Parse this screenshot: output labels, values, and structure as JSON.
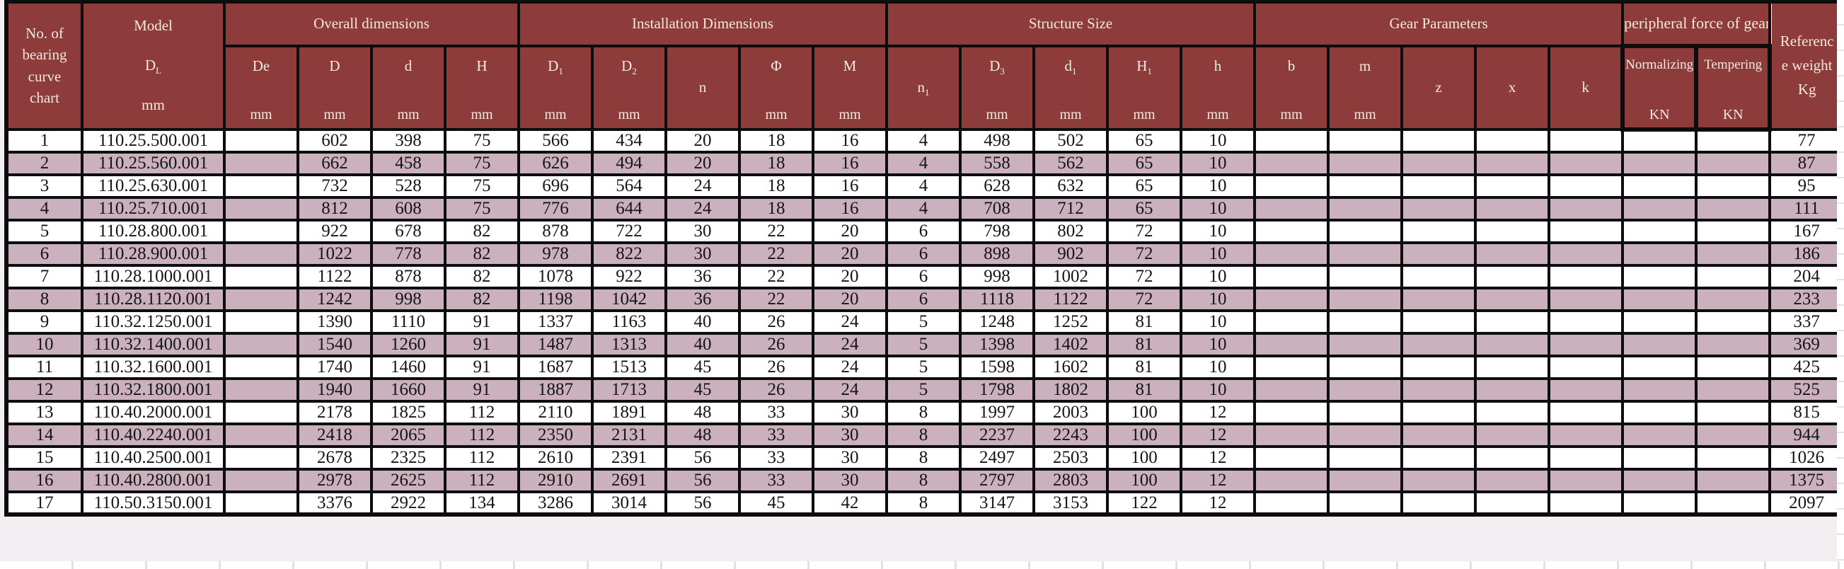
{
  "colors": {
    "header_bg": "#8e3b3b",
    "header_text": "#f2e9df",
    "row_stripe": "#cbb0bd",
    "row_plain": "#ffffff",
    "grid_border": "#0d0d0d",
    "background_gridline": "#e6dfe4"
  },
  "table": {
    "header": {
      "col_no": {
        "lines": [
          "No. of",
          "bearing",
          "curve",
          "chart"
        ]
      },
      "col_model": {
        "title": "Model",
        "symbol_base": "D",
        "symbol_sub": "L",
        "unit": "mm"
      },
      "groups": [
        {
          "label": "Overall dimensions",
          "span": 4,
          "clipped": false
        },
        {
          "label": "Installation Dimensions",
          "span": 5,
          "clipped": false
        },
        {
          "label": "Structure Size",
          "span": 5,
          "clipped": false
        },
        {
          "label": "Gear Parameters",
          "span": 5,
          "clipped": false
        },
        {
          "label": "peripheral force of gear",
          "span": 2,
          "clipped": true
        }
      ],
      "subcols": [
        {
          "key": "De",
          "base": "De",
          "sub": "",
          "unit": "mm"
        },
        {
          "key": "D",
          "base": "D",
          "sub": "",
          "unit": "mm"
        },
        {
          "key": "d",
          "base": "d",
          "sub": "",
          "unit": "mm"
        },
        {
          "key": "H",
          "base": "H",
          "sub": "",
          "unit": "mm"
        },
        {
          "key": "D1",
          "base": "D",
          "sub": "1",
          "unit": "mm"
        },
        {
          "key": "D2",
          "base": "D",
          "sub": "2",
          "unit": "mm"
        },
        {
          "key": "n",
          "base": "n",
          "sub": "",
          "unit": ""
        },
        {
          "key": "Phi",
          "base": "Φ",
          "sub": "",
          "unit": "mm"
        },
        {
          "key": "M",
          "base": "M",
          "sub": "",
          "unit": "mm"
        },
        {
          "key": "n1",
          "base": "n",
          "sub": "1",
          "unit": ""
        },
        {
          "key": "D3",
          "base": "D",
          "sub": "3",
          "unit": "mm"
        },
        {
          "key": "d1",
          "base": "d",
          "sub": "1",
          "unit": "mm"
        },
        {
          "key": "H1",
          "base": "H",
          "sub": "1",
          "unit": "mm"
        },
        {
          "key": "h",
          "base": "h",
          "sub": "",
          "unit": "mm"
        },
        {
          "key": "b",
          "base": "b",
          "sub": "",
          "unit": "mm"
        },
        {
          "key": "m",
          "base": "m",
          "sub": "",
          "unit": "mm"
        },
        {
          "key": "z",
          "base": "z",
          "sub": "",
          "unit": ""
        },
        {
          "key": "x",
          "base": "x",
          "sub": "",
          "unit": ""
        },
        {
          "key": "k",
          "base": "k",
          "sub": "",
          "unit": ""
        },
        {
          "key": "Normalizing",
          "base": "Normalizing",
          "sub": "",
          "unit": "KN"
        },
        {
          "key": "Tempering",
          "base": "Tempering",
          "sub": "",
          "unit": "KN"
        }
      ],
      "col_weight": {
        "lines": [
          "Referenc",
          "e weight",
          "Kg"
        ]
      }
    },
    "rows": [
      {
        "no": "1",
        "model": "110.25.500.001",
        "values": [
          "",
          "602",
          "398",
          "75",
          "566",
          "434",
          "20",
          "18",
          "16",
          "4",
          "498",
          "502",
          "65",
          "10",
          "",
          "",
          "",
          "",
          "",
          "",
          ""
        ],
        "weight": "77"
      },
      {
        "no": "2",
        "model": "110.25.560.001",
        "values": [
          "",
          "662",
          "458",
          "75",
          "626",
          "494",
          "20",
          "18",
          "16",
          "4",
          "558",
          "562",
          "65",
          "10",
          "",
          "",
          "",
          "",
          "",
          "",
          ""
        ],
        "weight": "87"
      },
      {
        "no": "3",
        "model": "110.25.630.001",
        "values": [
          "",
          "732",
          "528",
          "75",
          "696",
          "564",
          "24",
          "18",
          "16",
          "4",
          "628",
          "632",
          "65",
          "10",
          "",
          "",
          "",
          "",
          "",
          "",
          ""
        ],
        "weight": "95"
      },
      {
        "no": "4",
        "model": "110.25.710.001",
        "values": [
          "",
          "812",
          "608",
          "75",
          "776",
          "644",
          "24",
          "18",
          "16",
          "4",
          "708",
          "712",
          "65",
          "10",
          "",
          "",
          "",
          "",
          "",
          "",
          ""
        ],
        "weight": "111"
      },
      {
        "no": "5",
        "model": "110.28.800.001",
        "values": [
          "",
          "922",
          "678",
          "82",
          "878",
          "722",
          "30",
          "22",
          "20",
          "6",
          "798",
          "802",
          "72",
          "10",
          "",
          "",
          "",
          "",
          "",
          "",
          ""
        ],
        "weight": "167"
      },
      {
        "no": "6",
        "model": "110.28.900.001",
        "values": [
          "",
          "1022",
          "778",
          "82",
          "978",
          "822",
          "30",
          "22",
          "20",
          "6",
          "898",
          "902",
          "72",
          "10",
          "",
          "",
          "",
          "",
          "",
          "",
          ""
        ],
        "weight": "186"
      },
      {
        "no": "7",
        "model": "110.28.1000.001",
        "values": [
          "",
          "1122",
          "878",
          "82",
          "1078",
          "922",
          "36",
          "22",
          "20",
          "6",
          "998",
          "1002",
          "72",
          "10",
          "",
          "",
          "",
          "",
          "",
          "",
          ""
        ],
        "weight": "204"
      },
      {
        "no": "8",
        "model": "110.28.1120.001",
        "values": [
          "",
          "1242",
          "998",
          "82",
          "1198",
          "1042",
          "36",
          "22",
          "20",
          "6",
          "1118",
          "1122",
          "72",
          "10",
          "",
          "",
          "",
          "",
          "",
          "",
          ""
        ],
        "weight": "233"
      },
      {
        "no": "9",
        "model": "110.32.1250.001",
        "values": [
          "",
          "1390",
          "1110",
          "91",
          "1337",
          "1163",
          "40",
          "26",
          "24",
          "5",
          "1248",
          "1252",
          "81",
          "10",
          "",
          "",
          "",
          "",
          "",
          "",
          ""
        ],
        "weight": "337"
      },
      {
        "no": "10",
        "model": "110.32.1400.001",
        "values": [
          "",
          "1540",
          "1260",
          "91",
          "1487",
          "1313",
          "40",
          "26",
          "24",
          "5",
          "1398",
          "1402",
          "81",
          "10",
          "",
          "",
          "",
          "",
          "",
          "",
          ""
        ],
        "weight": "369"
      },
      {
        "no": "11",
        "model": "110.32.1600.001",
        "values": [
          "",
          "1740",
          "1460",
          "91",
          "1687",
          "1513",
          "45",
          "26",
          "24",
          "5",
          "1598",
          "1602",
          "81",
          "10",
          "",
          "",
          "",
          "",
          "",
          "",
          ""
        ],
        "weight": "425"
      },
      {
        "no": "12",
        "model": "110.32.1800.001",
        "values": [
          "",
          "1940",
          "1660",
          "91",
          "1887",
          "1713",
          "45",
          "26",
          "24",
          "5",
          "1798",
          "1802",
          "81",
          "10",
          "",
          "",
          "",
          "",
          "",
          "",
          ""
        ],
        "weight": "525"
      },
      {
        "no": "13",
        "model": "110.40.2000.001",
        "values": [
          "",
          "2178",
          "1825",
          "112",
          "2110",
          "1891",
          "48",
          "33",
          "30",
          "8",
          "1997",
          "2003",
          "100",
          "12",
          "",
          "",
          "",
          "",
          "",
          "",
          ""
        ],
        "weight": "815"
      },
      {
        "no": "14",
        "model": "110.40.2240.001",
        "values": [
          "",
          "2418",
          "2065",
          "112",
          "2350",
          "2131",
          "48",
          "33",
          "30",
          "8",
          "2237",
          "2243",
          "100",
          "12",
          "",
          "",
          "",
          "",
          "",
          "",
          ""
        ],
        "weight": "944"
      },
      {
        "no": "15",
        "model": "110.40.2500.001",
        "values": [
          "",
          "2678",
          "2325",
          "112",
          "2610",
          "2391",
          "56",
          "33",
          "30",
          "8",
          "2497",
          "2503",
          "100",
          "12",
          "",
          "",
          "",
          "",
          "",
          "",
          ""
        ],
        "weight": "1026"
      },
      {
        "no": "16",
        "model": "110.40.2800.001",
        "values": [
          "",
          "2978",
          "2625",
          "112",
          "2910",
          "2691",
          "56",
          "33",
          "30",
          "8",
          "2797",
          "2803",
          "100",
          "12",
          "",
          "",
          "",
          "",
          "",
          "",
          ""
        ],
        "weight": "1375"
      },
      {
        "no": "17",
        "model": "110.50.3150.001",
        "values": [
          "",
          "3376",
          "2922",
          "134",
          "3286",
          "3014",
          "56",
          "45",
          "42",
          "8",
          "3147",
          "3153",
          "122",
          "12",
          "",
          "",
          "",
          "",
          "",
          "",
          ""
        ],
        "weight": "2097"
      }
    ]
  }
}
